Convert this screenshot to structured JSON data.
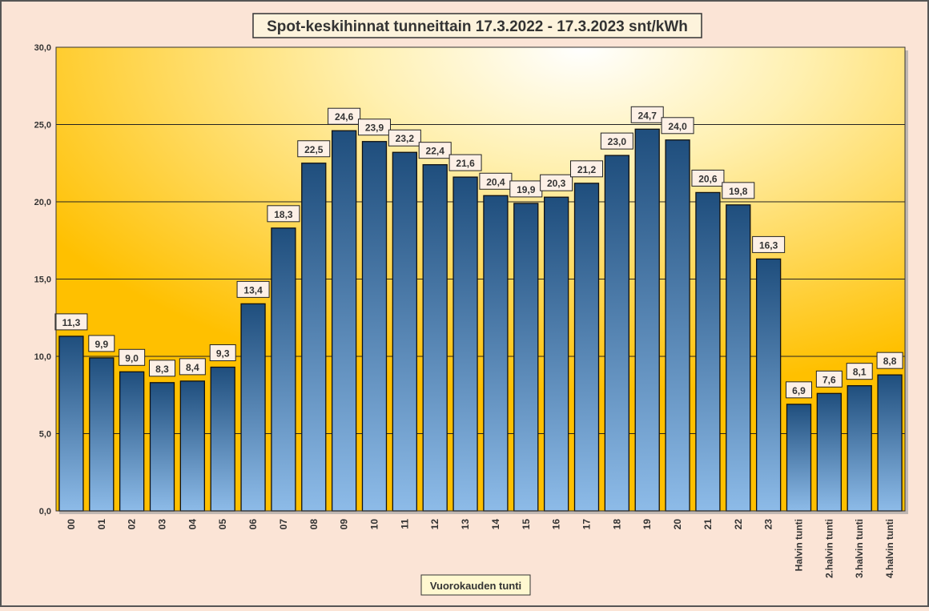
{
  "chart_data": {
    "type": "bar",
    "title": "Spot-keskihinnat tunneittain 17.3.2022 - 17.3.2023 snt/kWh",
    "xlabel": "Vuorokauden tunti",
    "ylabel": "",
    "ylim": [
      0,
      30
    ],
    "yticks": [
      "0,0",
      "5,0",
      "10,0",
      "15,0",
      "20,0",
      "25,0",
      "30,0"
    ],
    "ytick_values": [
      0,
      5,
      10,
      15,
      20,
      25,
      30
    ],
    "grid": true,
    "categories": [
      "00",
      "01",
      "02",
      "03",
      "04",
      "05",
      "06",
      "07",
      "08",
      "09",
      "10",
      "11",
      "12",
      "13",
      "14",
      "15",
      "16",
      "17",
      "18",
      "19",
      "20",
      "21",
      "22",
      "23",
      "Halvin tunti",
      "2.halvin tunti",
      "3.halvin tunti",
      "4.halvin tunti"
    ],
    "values": [
      11.3,
      9.9,
      9.0,
      8.3,
      8.4,
      9.3,
      13.4,
      18.3,
      22.5,
      24.6,
      23.9,
      23.2,
      22.4,
      21.6,
      20.4,
      19.9,
      20.3,
      21.2,
      23.0,
      24.7,
      24.0,
      20.6,
      19.8,
      16.3,
      6.9,
      7.6,
      8.1,
      8.8
    ],
    "data_labels": [
      "11,3",
      "9,9",
      "9,0",
      "8,3",
      "8,4",
      "9,3",
      "13,4",
      "18,3",
      "22,5",
      "24,6",
      "23,9",
      "23,2",
      "22,4",
      "21,6",
      "20,4",
      "19,9",
      "20,3",
      "21,2",
      "23,0",
      "24,7",
      "24,0",
      "20,6",
      "19,8",
      "16,3",
      "6,9",
      "7,6",
      "8,1",
      "8,8"
    ]
  },
  "colors": {
    "bar_top": "#1f4e7d",
    "bar_bottom": "#8dbbe8",
    "plot_edge": "#ffc000",
    "plot_center": "#ffffff",
    "page": "#fbe4d6",
    "label_box": "#fdf0e6"
  }
}
